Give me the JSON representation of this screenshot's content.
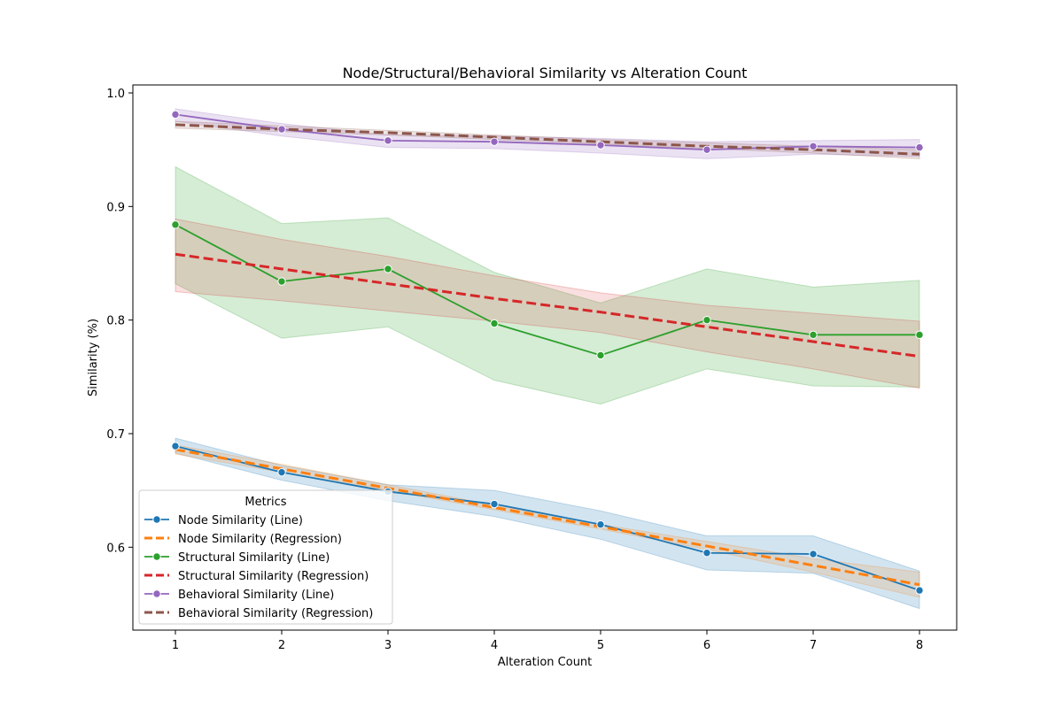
{
  "chart_data": {
    "type": "line",
    "title": "Node/Structural/Behavioral Similarity vs Alteration Count",
    "xlabel": "Alteration Count",
    "ylabel": "Similarity (%)",
    "x": [
      1,
      2,
      3,
      4,
      5,
      6,
      7,
      8
    ],
    "xlim": [
      0.6,
      8.35
    ],
    "ylim": [
      0.527,
      1.007
    ],
    "xticks": [
      1,
      2,
      3,
      4,
      5,
      6,
      7,
      8
    ],
    "yticks": [
      0.6,
      0.7,
      0.8,
      0.9,
      1.0
    ],
    "ytick_labels": [
      "0.6",
      "0.7",
      "0.8",
      "0.9",
      "1.0"
    ],
    "grid": false,
    "legend": {
      "title": "Metrics",
      "placement": "lower-left"
    },
    "series": [
      {
        "name": "Node Similarity (Line)",
        "kind": "line",
        "color": "#1f77b4",
        "values": [
          0.689,
          0.666,
          0.649,
          0.638,
          0.62,
          0.595,
          0.594,
          0.562
        ],
        "ci_lower": [
          0.683,
          0.659,
          0.641,
          0.627,
          0.607,
          0.58,
          0.577,
          0.546
        ],
        "ci_upper": [
          0.696,
          0.672,
          0.655,
          0.65,
          0.632,
          0.61,
          0.61,
          0.579
        ]
      },
      {
        "name": "Node Similarity (Regression)",
        "kind": "regression",
        "color": "#ff7f0e",
        "values": [
          0.686,
          0.669,
          0.652,
          0.635,
          0.618,
          0.601,
          0.584,
          0.567
        ],
        "ci_lower": [
          0.682,
          0.666,
          0.65,
          0.633,
          0.616,
          0.598,
          0.578,
          0.556
        ],
        "ci_upper": [
          0.69,
          0.673,
          0.655,
          0.637,
          0.62,
          0.605,
          0.59,
          0.578
        ]
      },
      {
        "name": "Structural Similarity (Line)",
        "kind": "line",
        "color": "#2ca02c",
        "values": [
          0.884,
          0.834,
          0.845,
          0.797,
          0.769,
          0.8,
          0.787,
          0.787
        ],
        "ci_lower": [
          0.832,
          0.784,
          0.794,
          0.747,
          0.726,
          0.757,
          0.742,
          0.741
        ],
        "ci_upper": [
          0.935,
          0.885,
          0.89,
          0.842,
          0.815,
          0.845,
          0.829,
          0.835
        ]
      },
      {
        "name": "Structural Similarity (Regression)",
        "kind": "regression",
        "color": "#d62728",
        "values": [
          0.858,
          0.845,
          0.832,
          0.819,
          0.807,
          0.794,
          0.781,
          0.768
        ],
        "ci_lower": [
          0.825,
          0.817,
          0.808,
          0.799,
          0.789,
          0.772,
          0.757,
          0.74
        ],
        "ci_upper": [
          0.889,
          0.871,
          0.856,
          0.839,
          0.824,
          0.813,
          0.806,
          0.799
        ]
      },
      {
        "name": "Behavioral Similarity (Line)",
        "kind": "line",
        "color": "#9467bd",
        "values": [
          0.981,
          0.968,
          0.958,
          0.957,
          0.954,
          0.95,
          0.953,
          0.952
        ],
        "ci_lower": [
          0.975,
          0.962,
          0.952,
          0.951,
          0.947,
          0.942,
          0.946,
          0.944
        ],
        "ci_upper": [
          0.986,
          0.973,
          0.963,
          0.962,
          0.96,
          0.957,
          0.958,
          0.959
        ]
      },
      {
        "name": "Behavioral Similarity (Regression)",
        "kind": "regression",
        "color": "#8c564b",
        "values": [
          0.972,
          0.968,
          0.965,
          0.961,
          0.957,
          0.953,
          0.95,
          0.946
        ],
        "ci_lower": [
          0.969,
          0.966,
          0.963,
          0.959,
          0.955,
          0.951,
          0.947,
          0.942
        ],
        "ci_upper": [
          0.975,
          0.971,
          0.967,
          0.963,
          0.959,
          0.956,
          0.953,
          0.95
        ]
      }
    ]
  }
}
